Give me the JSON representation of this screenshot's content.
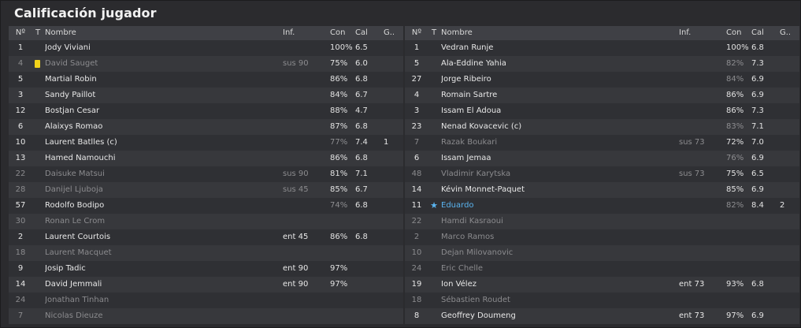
{
  "title": "Calificación jugador",
  "headers": {
    "no": "Nº",
    "t": "T",
    "name": "Nombre",
    "inf": "Inf.",
    "con": "Con",
    "cal": "Cal",
    "g": "G.."
  },
  "left": [
    {
      "no": "1",
      "name": "Jody Viviani",
      "inf": "",
      "con": "100%",
      "cal": "6.5",
      "g": "",
      "dim": false
    },
    {
      "no": "4",
      "name": "David Sauget",
      "inf": "sus 90",
      "con": "75%",
      "cal": "6.0",
      "g": "",
      "dim": true,
      "card": "yellow"
    },
    {
      "no": "5",
      "name": "Martial Robin",
      "inf": "",
      "con": "86%",
      "cal": "6.8",
      "g": "",
      "dim": false
    },
    {
      "no": "3",
      "name": "Sandy Paillot",
      "inf": "",
      "con": "84%",
      "cal": "6.7",
      "g": "",
      "dim": false
    },
    {
      "no": "12",
      "name": "Bostjan Cesar",
      "inf": "",
      "con": "88%",
      "cal": "4.7",
      "g": "",
      "dim": false
    },
    {
      "no": "6",
      "name": "Alaixys Romao",
      "inf": "",
      "con": "87%",
      "cal": "6.8",
      "g": "",
      "dim": false
    },
    {
      "no": "10",
      "name": "Laurent Batlles (c)",
      "inf": "",
      "con": "77%",
      "cal": "7.4",
      "g": "1",
      "dim": false,
      "conFaded": true
    },
    {
      "no": "13",
      "name": "Hamed Namouchi",
      "inf": "",
      "con": "86%",
      "cal": "6.8",
      "g": "",
      "dim": false
    },
    {
      "no": "22",
      "name": "Daisuke Matsui",
      "inf": "sus 90",
      "con": "81%",
      "cal": "7.1",
      "g": "",
      "dim": true
    },
    {
      "no": "28",
      "name": "Danijel Ljuboja",
      "inf": "sus 45",
      "con": "85%",
      "cal": "6.7",
      "g": "",
      "dim": true
    },
    {
      "no": "57",
      "name": "Rodolfo Bodipo",
      "inf": "",
      "con": "74%",
      "cal": "6.8",
      "g": "",
      "dim": false,
      "conFaded": true
    },
    {
      "no": "30",
      "name": "Ronan Le Crom",
      "inf": "",
      "con": "",
      "cal": "",
      "g": "",
      "dim": true
    },
    {
      "no": "2",
      "name": "Laurent Courtois",
      "inf": "ent 45",
      "con": "86%",
      "cal": "6.8",
      "g": "",
      "dim": false
    },
    {
      "no": "18",
      "name": "Laurent Macquet",
      "inf": "",
      "con": "",
      "cal": "",
      "g": "",
      "dim": true
    },
    {
      "no": "9",
      "name": "Josip Tadic",
      "inf": "ent 90",
      "con": "97%",
      "cal": "",
      "g": "",
      "dim": false
    },
    {
      "no": "14",
      "name": "David Jemmali",
      "inf": "ent 90",
      "con": "97%",
      "cal": "",
      "g": "",
      "dim": false
    },
    {
      "no": "24",
      "name": "Jonathan Tinhan",
      "inf": "",
      "con": "",
      "cal": "",
      "g": "",
      "dim": true
    },
    {
      "no": "7",
      "name": "Nicolas Dieuze",
      "inf": "",
      "con": "",
      "cal": "",
      "g": "",
      "dim": true
    }
  ],
  "right": [
    {
      "no": "1",
      "name": "Vedran Runje",
      "inf": "",
      "con": "100%",
      "cal": "6.8",
      "g": "",
      "dim": false
    },
    {
      "no": "5",
      "name": "Ala-Eddine Yahia",
      "inf": "",
      "con": "82%",
      "cal": "7.3",
      "g": "",
      "dim": false,
      "conFaded": true
    },
    {
      "no": "27",
      "name": "Jorge Ribeiro",
      "inf": "",
      "con": "84%",
      "cal": "6.9",
      "g": "",
      "dim": false,
      "conFaded": true
    },
    {
      "no": "4",
      "name": "Romain Sartre",
      "inf": "",
      "con": "86%",
      "cal": "6.9",
      "g": "",
      "dim": false
    },
    {
      "no": "3",
      "name": "Issam El Adoua",
      "inf": "",
      "con": "86%",
      "cal": "7.3",
      "g": "",
      "dim": false
    },
    {
      "no": "23",
      "name": "Nenad Kovacevic (c)",
      "inf": "",
      "con": "83%",
      "cal": "7.1",
      "g": "",
      "dim": false,
      "conFaded": true
    },
    {
      "no": "7",
      "name": "Razak Boukari",
      "inf": "sus 73",
      "con": "72%",
      "cal": "7.0",
      "g": "",
      "dim": true
    },
    {
      "no": "6",
      "name": "Issam Jemaa",
      "inf": "",
      "con": "76%",
      "cal": "6.9",
      "g": "",
      "dim": false,
      "conFaded": true
    },
    {
      "no": "48",
      "name": "Vladimir Karytska",
      "inf": "sus 73",
      "con": "75%",
      "cal": "6.5",
      "g": "",
      "dim": true
    },
    {
      "no": "14",
      "name": "Kévin Monnet-Paquet",
      "inf": "",
      "con": "85%",
      "cal": "6.9",
      "g": "",
      "dim": false
    },
    {
      "no": "11",
      "name": "Eduardo",
      "inf": "",
      "con": "82%",
      "cal": "8.4",
      "g": "2",
      "dim": false,
      "star": true,
      "conFaded": true
    },
    {
      "no": "22",
      "name": "Hamdi Kasraoui",
      "inf": "",
      "con": "",
      "cal": "",
      "g": "",
      "dim": true
    },
    {
      "no": "2",
      "name": "Marco Ramos",
      "inf": "",
      "con": "",
      "cal": "",
      "g": "",
      "dim": true
    },
    {
      "no": "10",
      "name": "Dejan Milovanovic",
      "inf": "",
      "con": "",
      "cal": "",
      "g": "",
      "dim": true
    },
    {
      "no": "24",
      "name": "Eric Chelle",
      "inf": "",
      "con": "",
      "cal": "",
      "g": "",
      "dim": true
    },
    {
      "no": "19",
      "name": "Ion Vélez",
      "inf": "ent 73",
      "con": "93%",
      "cal": "6.8",
      "g": "",
      "dim": false
    },
    {
      "no": "18",
      "name": "Sébastien Roudet",
      "inf": "",
      "con": "",
      "cal": "",
      "g": "",
      "dim": true
    },
    {
      "no": "8",
      "name": "Geoffrey Doumeng",
      "inf": "ent 73",
      "con": "97%",
      "cal": "6.9",
      "g": "",
      "dim": false
    }
  ],
  "colors": {
    "card": "#f1d21a",
    "star": "#5ab4f0",
    "dim": "#8b8b8e"
  },
  "icons": {
    "card": "yellow-card-icon",
    "star": "star-icon"
  }
}
